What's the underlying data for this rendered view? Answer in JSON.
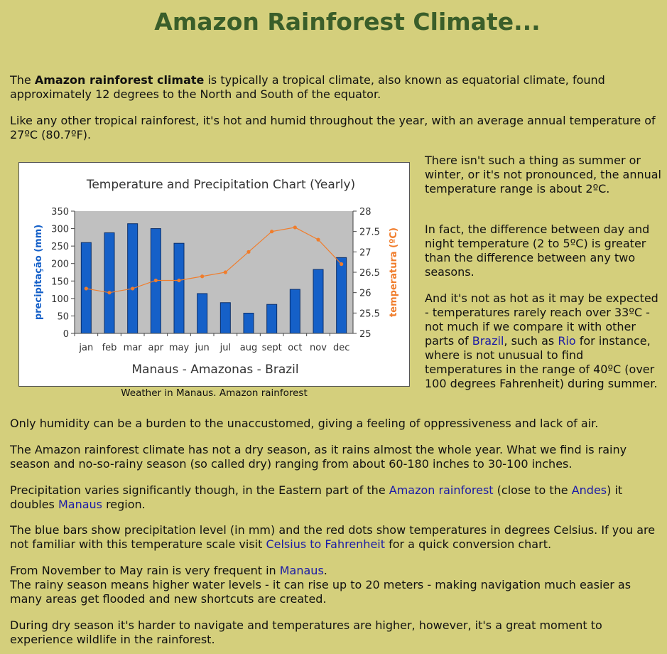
{
  "title": "Amazon Rainforest Climate...",
  "intro": {
    "lead_bold": "Amazon rainforest climate",
    "p1_before": "The ",
    "p1_after": " is typically a tropical climate, also known as equatorial climate, found approximately 12 degrees to the North and South of the equator.",
    "p2": "Like any other tropical rainforest, it's hot and humid throughout the year, with an average annual temperature of 27ºC (80.7ºF)."
  },
  "side": {
    "p1": "There isn't such a thing as summer or winter, or it's not pronounced, the annual temperature range is about 2ºC.",
    "p2": "In fact, the difference between day and night temperature (2 to 5ºC) is greater than the difference between any two seasons.",
    "p3_a": "And it's not as hot as it may be expected - temperatures rarely reach over 33ºC - not much if we compare it with other parts of ",
    "p3_link1": "Brazil",
    "p3_b": ", such as ",
    "p3_link2": "Rio",
    "p3_c": " for instance, where is not unusual to find temperatures in the range of 40ºC (over 100 degrees Fahrenheit) during summer."
  },
  "caption": "Weather in Manaus. Amazon rainforest",
  "body": {
    "p1": "Only humidity can be a burden to the unaccustomed, giving a feeling of oppressiveness and lack of air.",
    "p2": "The Amazon rainforest climate has not a dry season, as it rains almost the whole year. What we find is rainy season and no-so-rainy season (so called dry) ranging from about 60-180 inches to 30-100 inches.",
    "p3_a": "Precipitation varies significantly though, in the Eastern part of the ",
    "p3_link1": "Amazon rainforest",
    "p3_b": " (close to the ",
    "p3_link2": "Andes",
    "p3_c": ") it doubles ",
    "p3_link3": "Manaus",
    "p3_d": " region.",
    "p4_a": "The blue bars show precipitation level (in mm) and the red dots show temperatures in degrees Celsius. If you are not familiar with this temperature scale visit ",
    "p4_link": "Celsius to Fahrenheit",
    "p4_b": " for a quick conversion chart.",
    "p5_a": "From November to May rain is very frequent in ",
    "p5_link": "Manaus",
    "p5_b": ".",
    "p5_c": "The rainy season means higher water levels - it can rise up to 20 meters - making navigation much easier as many areas get flooded and new shortcuts are created.",
    "p6": "During dry season it's harder to navigate and temperatures are higher, however, it's a great moment to experience wildlife in the rainforest."
  },
  "chart_data": {
    "type": "bar",
    "title": "Temperature and Precipitation Chart (Yearly)",
    "subtitle": "Manaus - Amazonas - Brazil",
    "categories": [
      "jan",
      "feb",
      "mar",
      "apr",
      "may",
      "jun",
      "jul",
      "aug",
      "sept",
      "oct",
      "nov",
      "dec"
    ],
    "ylabel": "precipitação (mm)",
    "y2label": "temperatura (ºC)",
    "ylim": [
      0,
      350
    ],
    "y2lim": [
      25,
      28
    ],
    "yticks": [
      "0",
      "50",
      "100",
      "150",
      "200",
      "250",
      "300",
      "350"
    ],
    "y2ticks": [
      "25",
      "25.5",
      "26",
      "26.5",
      "27",
      "27.5",
      "28"
    ],
    "series": [
      {
        "name": "precipitação (mm)",
        "kind": "bar",
        "color": "#1560c8",
        "values": [
          260,
          288,
          314,
          300,
          258,
          114,
          88,
          58,
          83,
          126,
          183,
          217
        ]
      },
      {
        "name": "temperatura (ºC)",
        "kind": "line",
        "color": "#f07d2c",
        "values": [
          26.1,
          26.0,
          26.1,
          26.3,
          26.3,
          26.4,
          26.5,
          27.0,
          27.5,
          27.6,
          27.3,
          26.7
        ]
      }
    ],
    "plot_background": "#c0c0c0",
    "grid": false
  }
}
